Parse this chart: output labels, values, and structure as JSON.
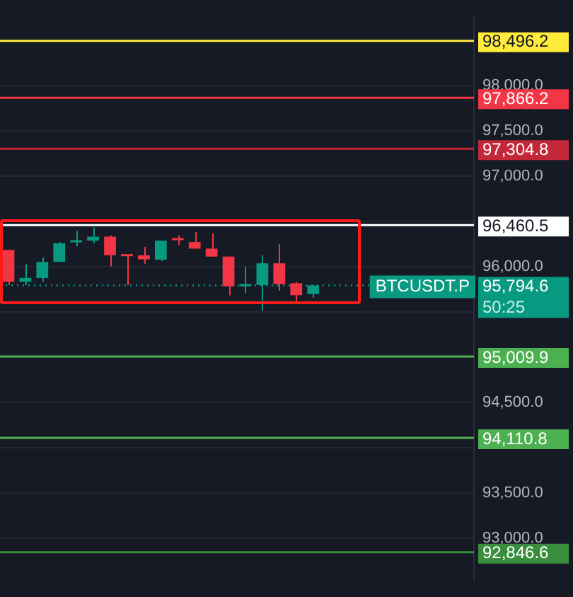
{
  "chart_data": {
    "type": "candlestick",
    "categories": [
      null,
      null,
      null,
      null,
      null,
      null,
      null,
      null,
      null,
      null,
      null,
      null,
      null,
      null,
      null,
      null,
      null,
      null,
      null,
      null,
      null,
      null,
      null,
      null,
      null,
      null,
      null,
      null
    ],
    "ohlc": [
      [
        96187,
        96187,
        95798,
        95834
      ],
      [
        95834,
        96029,
        95798,
        95878
      ],
      [
        95877,
        96103,
        95833,
        96054
      ],
      [
        96054,
        96274,
        96054,
        96260
      ],
      [
        96270,
        96397,
        96225,
        96289
      ],
      [
        96289,
        96436,
        96260,
        96333
      ],
      [
        96333,
        96348,
        96005,
        96127
      ],
      [
        96127,
        96127,
        95799,
        96117
      ],
      [
        96127,
        96220,
        96034,
        96083
      ],
      [
        96078,
        96289,
        96064,
        96289
      ],
      [
        96304,
        96348,
        96240,
        96294
      ],
      [
        96274,
        96382,
        96201,
        96201
      ],
      [
        96201,
        96368,
        96113,
        96113
      ],
      [
        96113,
        96113,
        95686,
        95784
      ],
      [
        95784,
        96000,
        95711,
        95809
      ],
      [
        95799,
        96127,
        95515,
        96039
      ],
      [
        96039,
        96250,
        95735,
        95809
      ],
      [
        95819,
        95833,
        95588,
        95686
      ],
      [
        95700,
        95800,
        95660,
        95794.6
      ],
      null,
      null,
      null,
      null,
      null,
      null,
      null,
      null,
      null
    ],
    "colors": [
      "#f23645",
      "#089981",
      "#089981",
      "#089981",
      "#089981",
      "#089981",
      "#f23645",
      "#f23645",
      "#f23645",
      "#089981",
      "#f23645",
      "#f23645",
      "#f23645",
      "#f23645",
      "#089981",
      "#089981",
      "#f23645",
      "#f23645",
      "#089981",
      null,
      null,
      null,
      null,
      null,
      null,
      null,
      null,
      null
    ],
    "ylim": [
      92550,
      98750
    ],
    "yticks": [
      {
        "value": 93000,
        "label": "93,000.0"
      },
      {
        "value": 93500,
        "label": "93,500.0"
      },
      {
        "value": 94000,
        "label": null
      },
      {
        "value": 94500,
        "label": "94,500.0"
      },
      {
        "value": 95000,
        "label": null
      },
      {
        "value": 95500,
        "label": null
      },
      {
        "value": 96000,
        "label": "96,000.0"
      },
      {
        "value": 96500,
        "label": null
      },
      {
        "value": 97000,
        "label": "97,000.0"
      },
      {
        "value": 97500,
        "label": "97,500.0"
      },
      {
        "value": 98000,
        "label": "98,000.0"
      }
    ],
    "grid": "y",
    "tick_labels": "y",
    "legend": false,
    "ref_lines": [
      {
        "axis": "y",
        "value": 98496.2,
        "label": "98,496.2",
        "color": "#ffeb3b"
      },
      {
        "axis": "y",
        "value": 97866.2,
        "label": "97,866.2",
        "color": "#f23645"
      },
      {
        "axis": "y",
        "value": 97304.8,
        "label": "97,304.8",
        "color": "#c2283a"
      },
      {
        "axis": "y",
        "value": 96460.5,
        "label": "96,460.5",
        "color": "#ffffff"
      },
      {
        "axis": "y",
        "value": 95794.6,
        "label": "95,794.6",
        "color": "#089981",
        "line_style": "dotted"
      },
      {
        "axis": "y",
        "value": 95009.9,
        "label": "95,009.9",
        "color": "#4caf50"
      },
      {
        "axis": "y",
        "value": 94110.8,
        "label": "94,110.8",
        "color": "#4caf50"
      },
      {
        "axis": "y",
        "value": 92846.6,
        "label": "92,846.6",
        "color": "#388e3c"
      }
    ],
    "annotations": [
      {
        "text": "BTCUSDT.P",
        "y": 95794.6
      },
      "50:25"
    ]
  }
}
